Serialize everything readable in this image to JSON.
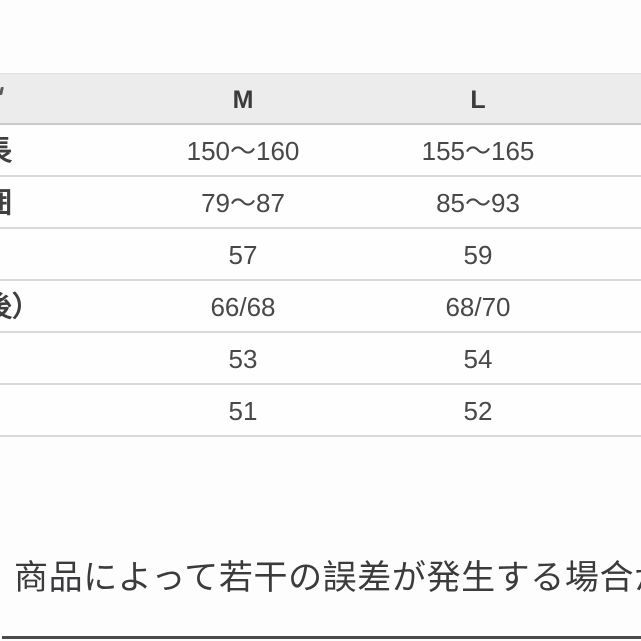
{
  "table": {
    "header": {
      "m": "M",
      "l": "L"
    },
    "rows": [
      {
        "label_fragment": "長",
        "m": "150〜160",
        "l": "155〜165"
      },
      {
        "label_fragment": "囲",
        "m": "79〜87",
        "l": "85〜93"
      },
      {
        "label_fragment": "",
        "m": "57",
        "l": "59"
      },
      {
        "label_fragment": "後）",
        "m": "66/68",
        "l": "68/70"
      },
      {
        "label_fragment": "",
        "m": "53",
        "l": "54"
      },
      {
        "label_fragment": "",
        "m": "51",
        "l": "52"
      }
    ]
  },
  "notice": {
    "text": "商品によって若干の誤差が発生する場合",
    "clipped_char": "が"
  },
  "colors": {
    "header_bg": "#ececec",
    "row_line": "#d9d9d9",
    "header_line": "#c9c9c9",
    "text_dark": "#3b3b3d",
    "value_text": "#48484a",
    "bottom_rule": "#4b4b4b"
  }
}
